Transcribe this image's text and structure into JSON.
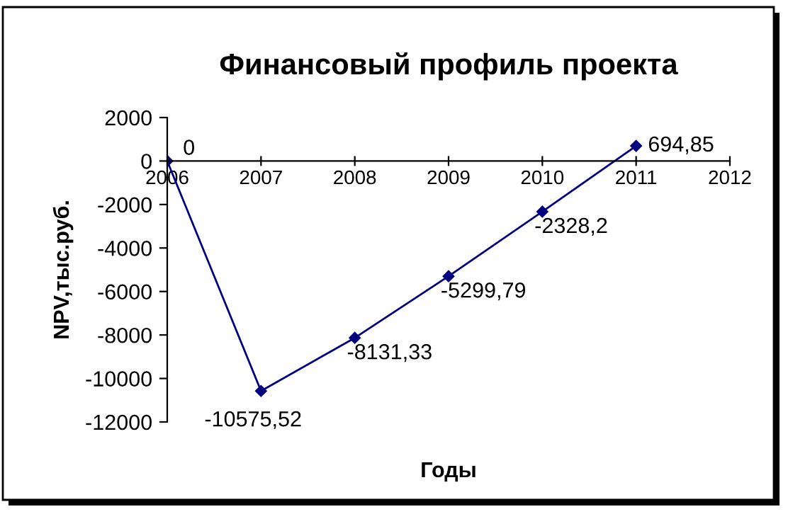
{
  "chart_data": {
    "type": "line",
    "title": "Финансовый профиль проекта",
    "xlabel": "Годы",
    "ylabel": "NPV,тыс.руб.",
    "x": [
      2006,
      2007,
      2008,
      2009,
      2010,
      2011
    ],
    "series": [
      {
        "color": "#000080",
        "values": [
          0,
          -10575.52,
          -8131.33,
          -5299.79,
          -2328.2,
          694.85
        ],
        "value_labels": [
          "0",
          "-10575,52",
          "-8131,33",
          "-5299,79",
          "-2328,2",
          "694,85"
        ]
      }
    ],
    "xlim": [
      2006,
      2012
    ],
    "xticks": [
      2006,
      2007,
      2008,
      2009,
      2010,
      2011,
      2012
    ],
    "ylim": [
      -12000,
      2000
    ],
    "yticks": [
      -12000,
      -10000,
      -8000,
      -6000,
      -4000,
      -2000,
      0,
      2000
    ],
    "grid": false,
    "legend": false,
    "marker": "diamond",
    "line_style": "solid"
  }
}
